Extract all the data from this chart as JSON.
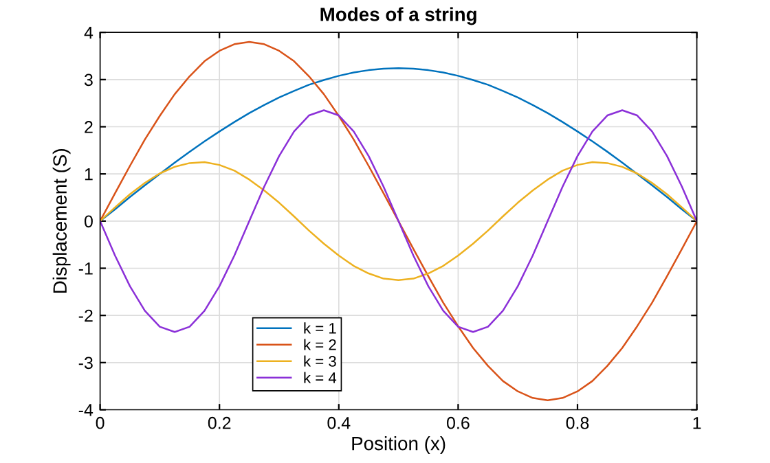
{
  "chart_data": {
    "type": "line",
    "title": "Modes of a string",
    "xlabel": "Position (x)",
    "ylabel": "Displacement (S)",
    "x": [
      0,
      0.025,
      0.05,
      0.075,
      0.1,
      0.125,
      0.15,
      0.175,
      0.2,
      0.225,
      0.25,
      0.275,
      0.3,
      0.325,
      0.35,
      0.375,
      0.4,
      0.425,
      0.45,
      0.475,
      0.5,
      0.525,
      0.55,
      0.575,
      0.6,
      0.625,
      0.65,
      0.675,
      0.7,
      0.725,
      0.75,
      0.775,
      0.8,
      0.825,
      0.85,
      0.875,
      0.9,
      0.925,
      0.95,
      0.975,
      1
    ],
    "series": [
      {
        "name": "k = 1",
        "color": "#0072bd",
        "values": [
          0,
          0.25,
          0.51,
          0.76,
          1.0,
          1.24,
          1.47,
          1.69,
          1.9,
          2.1,
          2.29,
          2.46,
          2.62,
          2.76,
          2.89,
          2.99,
          3.08,
          3.15,
          3.2,
          3.23,
          3.24,
          3.23,
          3.2,
          3.15,
          3.08,
          2.99,
          2.89,
          2.76,
          2.62,
          2.46,
          2.29,
          2.1,
          1.9,
          1.69,
          1.47,
          1.24,
          1.0,
          0.76,
          0.51,
          0.25,
          0
        ]
      },
      {
        "name": "k = 2",
        "color": "#d95319",
        "values": [
          0,
          0.59,
          1.17,
          1.73,
          2.23,
          2.69,
          3.07,
          3.39,
          3.61,
          3.75,
          3.8,
          3.75,
          3.61,
          3.39,
          3.07,
          2.69,
          2.23,
          1.73,
          1.17,
          0.59,
          0,
          -0.59,
          -1.17,
          -1.73,
          -2.23,
          -2.69,
          -3.07,
          -3.39,
          -3.61,
          -3.75,
          -3.8,
          -3.75,
          -3.61,
          -3.39,
          -3.07,
          -2.69,
          -2.23,
          -1.73,
          -1.17,
          -0.59,
          0
        ]
      },
      {
        "name": "k = 3",
        "color": "#edb120",
        "values": [
          0,
          0.29,
          0.57,
          0.81,
          1.01,
          1.15,
          1.23,
          1.25,
          1.19,
          1.07,
          0.88,
          0.65,
          0.39,
          0.1,
          -0.2,
          -0.48,
          -0.73,
          -0.95,
          -1.11,
          -1.22,
          -1.25,
          -1.22,
          -1.11,
          -0.95,
          -0.73,
          -0.48,
          -0.2,
          0.1,
          0.39,
          0.65,
          0.88,
          1.07,
          1.19,
          1.25,
          1.23,
          1.15,
          1.01,
          0.81,
          0.57,
          0.29,
          0
        ]
      },
      {
        "name": "k = 4",
        "color": "#8b30d8",
        "values": [
          0,
          -0.73,
          -1.38,
          -1.9,
          -2.24,
          -2.35,
          -2.24,
          -1.9,
          -1.38,
          -0.73,
          0,
          0.73,
          1.38,
          1.9,
          2.24,
          2.35,
          2.24,
          1.9,
          1.38,
          0.73,
          0,
          -0.73,
          -1.38,
          -1.9,
          -2.24,
          -2.35,
          -2.24,
          -1.9,
          -1.38,
          -0.73,
          0,
          0.73,
          1.38,
          1.9,
          2.24,
          2.35,
          2.24,
          1.9,
          1.38,
          0.73,
          0
        ]
      }
    ],
    "xlim": [
      0,
      1
    ],
    "xticks": [
      0,
      0.2,
      0.4,
      0.6,
      0.8,
      1
    ],
    "ylim": [
      -4,
      4
    ],
    "yticks": [
      -4,
      -3,
      -2,
      -1,
      0,
      1,
      2,
      3,
      4
    ],
    "grid": true,
    "legend": "bottom",
    "line_style": "solid",
    "marker": "none"
  }
}
